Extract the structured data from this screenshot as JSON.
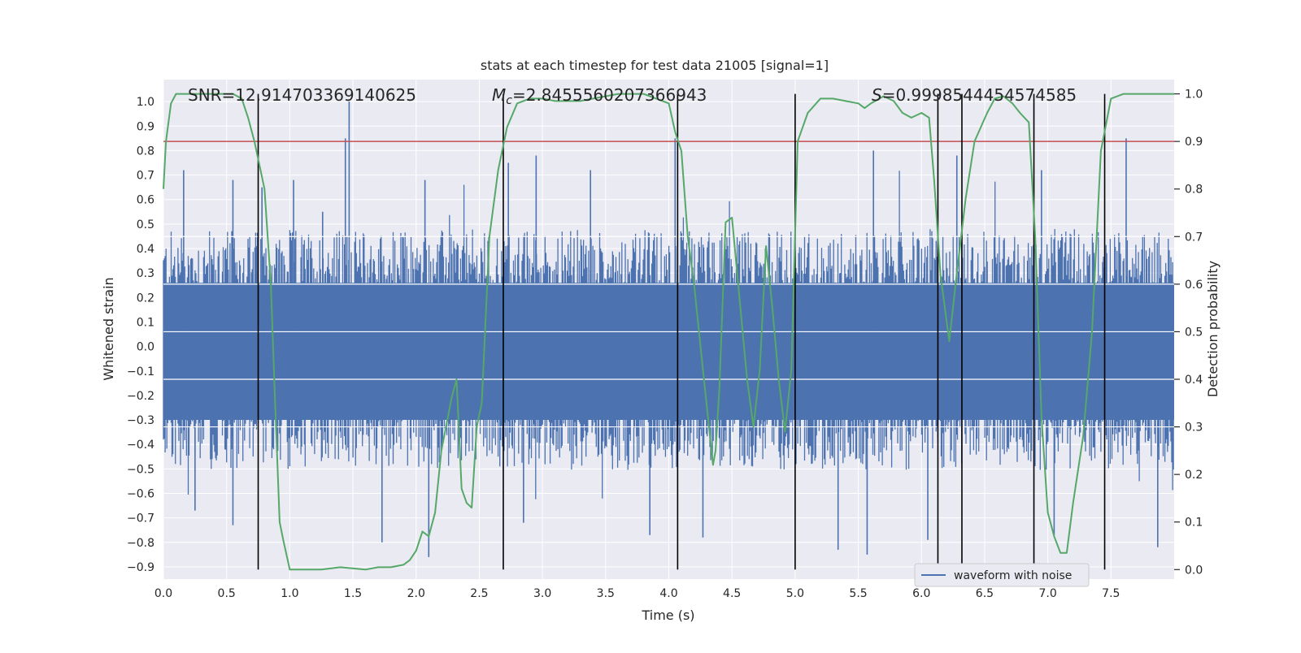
{
  "chart_data": {
    "type": "line",
    "title": "stats at each timestep for test data 21005 [signal=1]",
    "xlabel": "Time (s)",
    "ylabel": "Whitened strain",
    "ylabel_right": "Detection probability",
    "xlim": [
      0.0,
      8.0
    ],
    "ylim": [
      -0.95,
      1.09
    ],
    "ylim_right": [
      -0.02,
      1.03
    ],
    "xticks": [
      "0.0",
      "0.5",
      "1.0",
      "1.5",
      "2.0",
      "2.5",
      "3.0",
      "3.5",
      "4.0",
      "4.5",
      "5.0",
      "5.5",
      "6.0",
      "6.5",
      "7.0",
      "7.5"
    ],
    "yticks_left": [
      "1.0",
      "0.9",
      "0.8",
      "0.7",
      "0.6",
      "0.5",
      "0.4",
      "0.3",
      "0.2",
      "0.1",
      "0.0",
      "-0.1",
      "-0.2",
      "-0.3",
      "-0.4",
      "-0.5",
      "-0.6",
      "-0.7",
      "-0.8",
      "-0.9"
    ],
    "yticks_right": [
      "1.0",
      "0.9",
      "0.8",
      "0.7",
      "0.6",
      "0.5",
      "0.4",
      "0.3",
      "0.2",
      "0.1",
      "0.0"
    ],
    "stats": {
      "snr": "SNR=12.914703369140625",
      "mc_symbol": "M",
      "mc_sub": "c",
      "mc_value": "=2.8455560207366943",
      "s_symbol": "S",
      "s_value": "=0.9998544454574585"
    },
    "threshold": {
      "value": 0.9,
      "axis": "right",
      "color": "#c44e52"
    },
    "vertical_lines_x": [
      0.75,
      2.69,
      4.07,
      5.0,
      6.13,
      6.32,
      6.89,
      7.45
    ],
    "legend": {
      "label": "waveform with noise",
      "placement": "lower-right"
    },
    "waveform": {
      "name": "waveform with noise",
      "color": "#4c72b0",
      "envelope_upper": 0.4,
      "envelope_lower": -0.42,
      "spikes": [
        {
          "x": 0.16,
          "y": 0.72
        },
        {
          "x": 0.55,
          "y": 0.68
        },
        {
          "x": 0.78,
          "y": 0.65
        },
        {
          "x": 1.03,
          "y": 0.68
        },
        {
          "x": 1.26,
          "y": 0.55
        },
        {
          "x": 1.44,
          "y": 0.85
        },
        {
          "x": 1.47,
          "y": 1.0
        },
        {
          "x": 2.07,
          "y": 0.68
        },
        {
          "x": 2.95,
          "y": 0.78
        },
        {
          "x": 2.73,
          "y": 0.75
        },
        {
          "x": 3.38,
          "y": 0.72
        },
        {
          "x": 4.05,
          "y": 0.85
        },
        {
          "x": 5.62,
          "y": 0.8
        },
        {
          "x": 6.28,
          "y": 0.78
        },
        {
          "x": 6.95,
          "y": 0.72
        },
        {
          "x": 7.62,
          "y": 0.85
        },
        {
          "x": 0.55,
          "y": -0.73
        },
        {
          "x": 1.73,
          "y": -0.8
        },
        {
          "x": 2.1,
          "y": -0.86
        },
        {
          "x": 4.27,
          "y": -0.78
        },
        {
          "x": 5.57,
          "y": -0.85
        },
        {
          "x": 5.34,
          "y": -0.83
        },
        {
          "x": 7.87,
          "y": -0.82
        },
        {
          "x": 0.25,
          "y": -0.67
        },
        {
          "x": 2.85,
          "y": -0.72
        },
        {
          "x": 3.85,
          "y": -0.77
        },
        {
          "x": 6.05,
          "y": -0.79
        },
        {
          "x": 7.05,
          "y": -0.77
        }
      ]
    },
    "probability": {
      "name": "detection probability",
      "color": "#55a868",
      "x": [
        0.0,
        0.02,
        0.06,
        0.1,
        0.2,
        0.4,
        0.55,
        0.62,
        0.67,
        0.72,
        0.8,
        0.85,
        0.88,
        0.92,
        0.95,
        1.0,
        1.1,
        1.25,
        1.4,
        1.6,
        1.7,
        1.8,
        1.9,
        1.95,
        2.0,
        2.05,
        2.1,
        2.15,
        2.2,
        2.28,
        2.32,
        2.36,
        2.4,
        2.44,
        2.48,
        2.52,
        2.58,
        2.65,
        2.72,
        2.8,
        2.9,
        3.0,
        3.1,
        3.2,
        3.3,
        3.4,
        3.5,
        3.6,
        3.7,
        3.8,
        3.9,
        4.0,
        4.05,
        4.1,
        4.15,
        4.2,
        4.27,
        4.35,
        4.37,
        4.4,
        4.45,
        4.5,
        4.57,
        4.62,
        4.67,
        4.72,
        4.77,
        4.82,
        4.87,
        4.92,
        4.97,
        5.02,
        5.1,
        5.2,
        5.3,
        5.4,
        5.5,
        5.55,
        5.6,
        5.7,
        5.78,
        5.85,
        5.92,
        6.0,
        6.06,
        6.1,
        6.15,
        6.22,
        6.27,
        6.35,
        6.42,
        6.52,
        6.58,
        6.65,
        6.72,
        6.78,
        6.85,
        6.9,
        6.95,
        7.0,
        7.05,
        7.1,
        7.15,
        7.2,
        7.28,
        7.35,
        7.42,
        7.5,
        7.6,
        7.8,
        8.0
      ],
      "y": [
        0.8,
        0.9,
        0.98,
        1.0,
        1.0,
        1.0,
        1.0,
        0.99,
        0.95,
        0.9,
        0.8,
        0.6,
        0.38,
        0.1,
        0.06,
        0.0,
        0.0,
        0.0,
        0.005,
        0.0,
        0.005,
        0.005,
        0.01,
        0.02,
        0.04,
        0.08,
        0.07,
        0.12,
        0.25,
        0.36,
        0.4,
        0.17,
        0.14,
        0.13,
        0.3,
        0.35,
        0.7,
        0.84,
        0.93,
        0.98,
        0.99,
        0.99,
        0.985,
        0.985,
        0.985,
        0.99,
        0.995,
        1.0,
        1.0,
        1.0,
        0.99,
        0.98,
        0.92,
        0.88,
        0.7,
        0.6,
        0.42,
        0.22,
        0.25,
        0.38,
        0.73,
        0.74,
        0.54,
        0.4,
        0.3,
        0.42,
        0.68,
        0.55,
        0.4,
        0.29,
        0.42,
        0.9,
        0.96,
        0.99,
        0.99,
        0.985,
        0.98,
        0.97,
        0.98,
        0.995,
        0.985,
        0.96,
        0.95,
        0.96,
        0.95,
        0.82,
        0.62,
        0.48,
        0.6,
        0.78,
        0.9,
        0.96,
        0.99,
        0.995,
        0.98,
        0.96,
        0.94,
        0.7,
        0.32,
        0.12,
        0.07,
        0.035,
        0.035,
        0.14,
        0.28,
        0.5,
        0.88,
        0.99,
        1.0,
        1.0,
        1.0
      ]
    }
  }
}
